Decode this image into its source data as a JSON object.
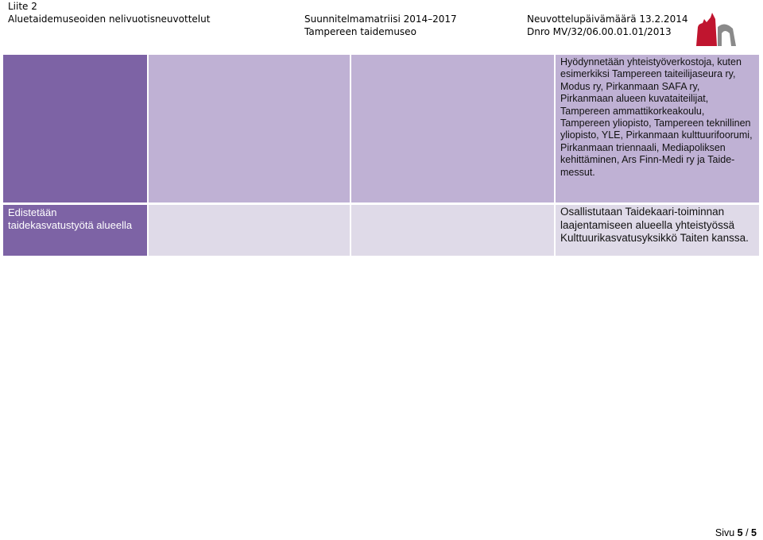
{
  "header": {
    "attachment": "Liite 2",
    "committee": "Aluetaidemuseoiden nelivuotisneuvottelut",
    "plan": "Suunnitelmamatriisi 2014–2017",
    "museum": "Tampereen taidemuseo",
    "date": "Neuvottelupäivämäärä 13.2.2014",
    "record": "Dnro MV/32/06.00.01.01/2013"
  },
  "logo": {
    "icon": "museum-logo-icon",
    "colors": [
      "#c0152f",
      "#8a8a8a"
    ]
  },
  "table": {
    "rows": [
      {
        "label": "",
        "cells": [
          "",
          "",
          "Hyödynnetään yhteistyöverkostoja, kuten esimerkiksi Tampereen taiteilijaseura ry, Modus ry, Pirkanmaan SAFA ry, Pirkanmaan alueen kuvataiteilijat, Tampereen ammattikorkeakoulu, Tampereen yliopisto, Tampereen teknillinen yliopisto, YLE, Pirkanmaan kulttuurifoorumi, Pirkanmaan triennaali, Mediapoliksen kehittäminen, Ars Finn-Medi ry ja Taide-messut."
        ]
      },
      {
        "label": "Edistetään taidekasvatustyötä alueella",
        "cells": [
          "",
          "",
          "Osallistutaan Taidekaari-toiminnan laajentamiseen alueella yhteistyössä Kulttuurikasvatusyksikkö Taiten kanssa."
        ]
      }
    ]
  },
  "footer": {
    "prefix": "Sivu ",
    "page": "5",
    "sep": " / ",
    "total": "5"
  },
  "colors": {
    "dark": "#7d63a5",
    "mid": "#bfb1d4",
    "light": "#dfdae8"
  }
}
